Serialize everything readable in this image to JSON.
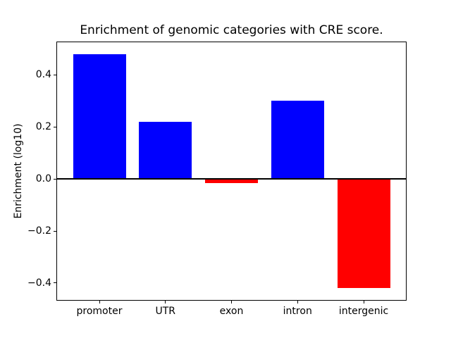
{
  "figure": {
    "background_color": "#ffffff"
  },
  "chart_data": {
    "type": "bar",
    "title": "Enrichment of genomic categories with CRE score.",
    "xlabel": "",
    "ylabel": "Enrichment (log10)",
    "categories": [
      "promoter",
      "UTR",
      "exon",
      "intron",
      "intergenic"
    ],
    "values": [
      0.48,
      0.22,
      -0.015,
      0.3,
      -0.42
    ],
    "bar_colors": [
      "#0000ff",
      "#0000ff",
      "#ff0000",
      "#0000ff",
      "#ff0000"
    ],
    "positive_color": "#0000ff",
    "negative_color": "#ff0000",
    "bar_width_fraction": 0.8,
    "ylim": [
      -0.465,
      0.525
    ],
    "yticks": [
      0.4,
      0.2,
      0.0,
      -0.2,
      -0.4
    ],
    "ytick_labels": [
      "0.4",
      "0.2",
      "0.0",
      "−0.2",
      "−0.4"
    ],
    "zero_line": true,
    "zero_line_color": "#000000",
    "grid": false,
    "legend": null
  }
}
